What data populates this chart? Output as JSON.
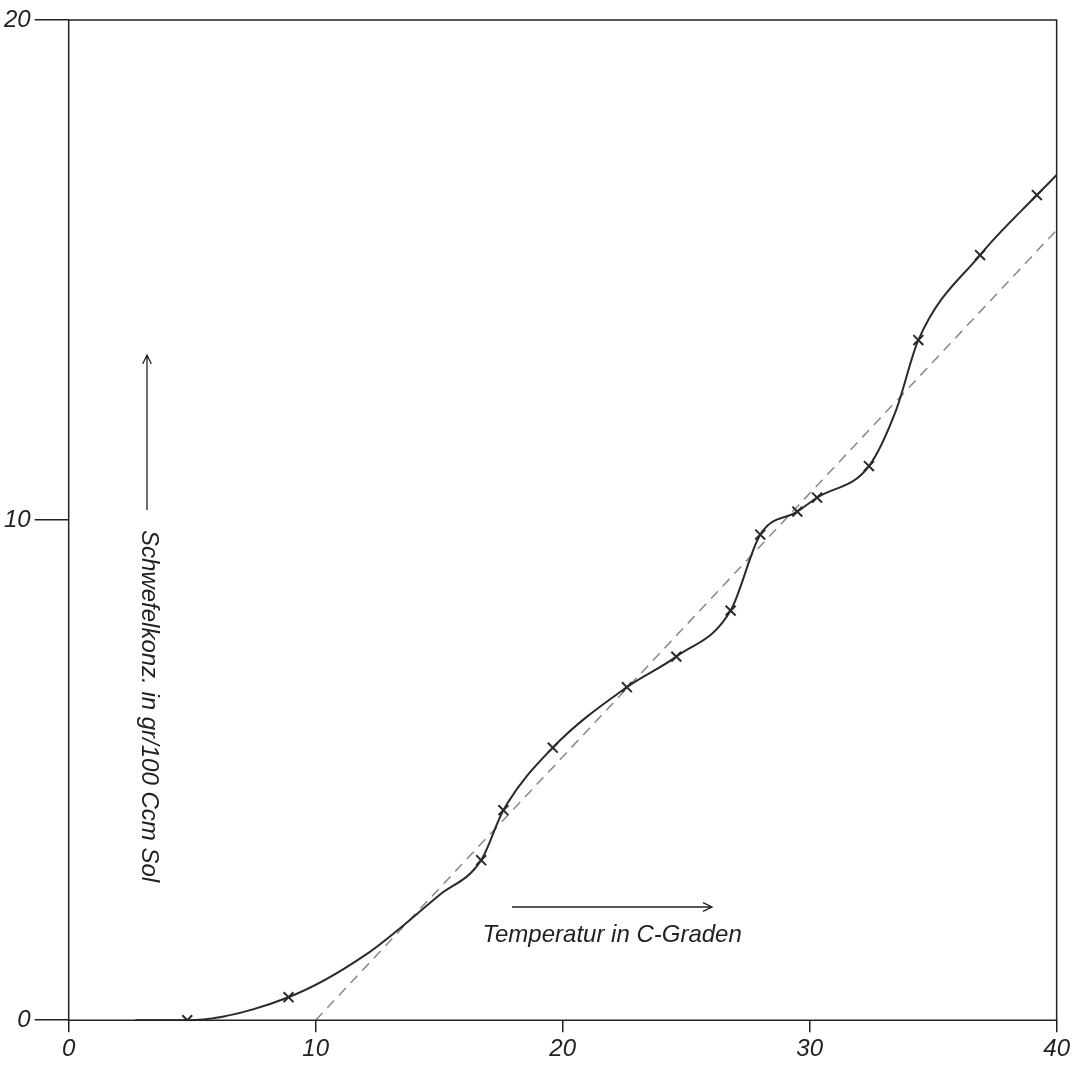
{
  "chart_data": {
    "type": "line",
    "xlabel": "Temperatur in C-Graden",
    "ylabel": "Schwefelkonz. in gr/100 Ccm Sol",
    "xlim": [
      0,
      40
    ],
    "ylim": [
      0,
      20
    ],
    "xticks": [
      0,
      10,
      20,
      30,
      40
    ],
    "yticks": [
      0,
      10,
      20
    ],
    "series": [
      {
        "type": "line",
        "color": "#2a2a2a",
        "marker": "none",
        "line_style": "solid",
        "x": [
          2.7,
          4.8,
          8.9,
          12,
          15,
          16.7,
          17.6,
          19.6,
          22.6,
          24.6,
          26.8,
          28.0,
          29.5,
          30.3,
          32.4,
          33.5,
          34.4,
          36.9,
          39.2,
          40
        ],
        "values": [
          0,
          0,
          0.46,
          1.3,
          2.5,
          3.2,
          4.2,
          5.45,
          6.66,
          7.27,
          8.19,
          9.71,
          10.17,
          10.45,
          11.08,
          12.2,
          13.6,
          15.3,
          16.5,
          16.9
        ]
      },
      {
        "type": "scatter",
        "color": "#2a2a2a",
        "marker": "cross",
        "x": [
          4.8,
          8.9,
          16.7,
          17.6,
          19.6,
          22.6,
          24.6,
          26.8,
          28.0,
          29.5,
          30.3,
          32.4,
          34.4,
          36.9,
          39.2
        ],
        "values": [
          0,
          0.46,
          3.2,
          4.2,
          5.45,
          6.66,
          7.27,
          8.19,
          9.71,
          10.17,
          10.45,
          11.08,
          13.6,
          15.3,
          16.5
        ]
      },
      {
        "type": "line",
        "color": "#888888",
        "marker": "none",
        "line_style": "dashed",
        "x": [
          10,
          40
        ],
        "values": [
          0,
          15.8
        ]
      }
    ]
  }
}
